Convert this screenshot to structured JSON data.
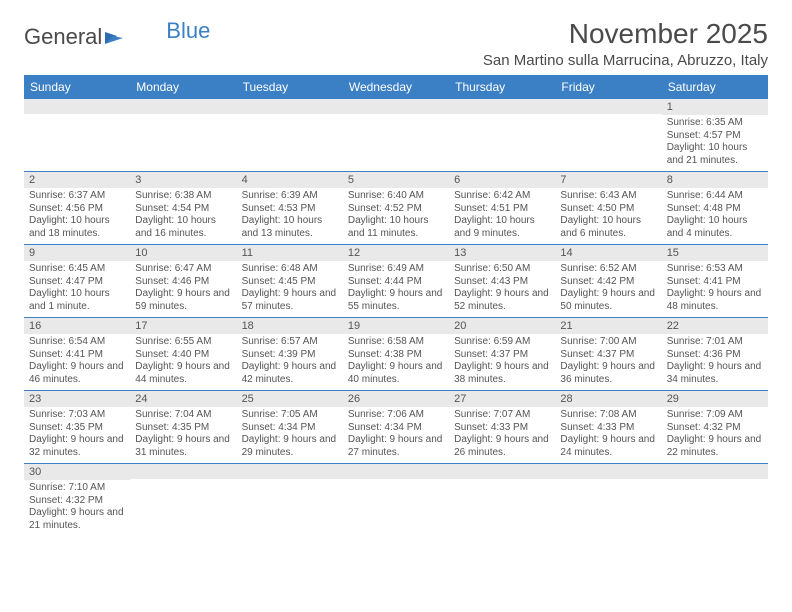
{
  "brand": {
    "part1": "General",
    "part2": "Blue"
  },
  "title": "November 2025",
  "location": "San Martino sulla Marrucina, Abruzzo, Italy",
  "colors": {
    "header_bg": "#3b7fc4",
    "header_text": "#ffffff",
    "row_border": "#3b7fc4",
    "daynum_bg": "#e9e9e9",
    "text": "#555555",
    "title_text": "#4a4a4a",
    "logo_gray": "#4a4a4a",
    "logo_blue": "#3b7fc4",
    "page_bg": "#ffffff"
  },
  "weekdays": [
    "Sunday",
    "Monday",
    "Tuesday",
    "Wednesday",
    "Thursday",
    "Friday",
    "Saturday"
  ],
  "weeks": [
    [
      {
        "blank": true
      },
      {
        "blank": true
      },
      {
        "blank": true
      },
      {
        "blank": true
      },
      {
        "blank": true
      },
      {
        "blank": true
      },
      {
        "day": "1",
        "sunrise": "Sunrise: 6:35 AM",
        "sunset": "Sunset: 4:57 PM",
        "daylight": "Daylight: 10 hours and 21 minutes."
      }
    ],
    [
      {
        "day": "2",
        "sunrise": "Sunrise: 6:37 AM",
        "sunset": "Sunset: 4:56 PM",
        "daylight": "Daylight: 10 hours and 18 minutes."
      },
      {
        "day": "3",
        "sunrise": "Sunrise: 6:38 AM",
        "sunset": "Sunset: 4:54 PM",
        "daylight": "Daylight: 10 hours and 16 minutes."
      },
      {
        "day": "4",
        "sunrise": "Sunrise: 6:39 AM",
        "sunset": "Sunset: 4:53 PM",
        "daylight": "Daylight: 10 hours and 13 minutes."
      },
      {
        "day": "5",
        "sunrise": "Sunrise: 6:40 AM",
        "sunset": "Sunset: 4:52 PM",
        "daylight": "Daylight: 10 hours and 11 minutes."
      },
      {
        "day": "6",
        "sunrise": "Sunrise: 6:42 AM",
        "sunset": "Sunset: 4:51 PM",
        "daylight": "Daylight: 10 hours and 9 minutes."
      },
      {
        "day": "7",
        "sunrise": "Sunrise: 6:43 AM",
        "sunset": "Sunset: 4:50 PM",
        "daylight": "Daylight: 10 hours and 6 minutes."
      },
      {
        "day": "8",
        "sunrise": "Sunrise: 6:44 AM",
        "sunset": "Sunset: 4:48 PM",
        "daylight": "Daylight: 10 hours and 4 minutes."
      }
    ],
    [
      {
        "day": "9",
        "sunrise": "Sunrise: 6:45 AM",
        "sunset": "Sunset: 4:47 PM",
        "daylight": "Daylight: 10 hours and 1 minute."
      },
      {
        "day": "10",
        "sunrise": "Sunrise: 6:47 AM",
        "sunset": "Sunset: 4:46 PM",
        "daylight": "Daylight: 9 hours and 59 minutes."
      },
      {
        "day": "11",
        "sunrise": "Sunrise: 6:48 AM",
        "sunset": "Sunset: 4:45 PM",
        "daylight": "Daylight: 9 hours and 57 minutes."
      },
      {
        "day": "12",
        "sunrise": "Sunrise: 6:49 AM",
        "sunset": "Sunset: 4:44 PM",
        "daylight": "Daylight: 9 hours and 55 minutes."
      },
      {
        "day": "13",
        "sunrise": "Sunrise: 6:50 AM",
        "sunset": "Sunset: 4:43 PM",
        "daylight": "Daylight: 9 hours and 52 minutes."
      },
      {
        "day": "14",
        "sunrise": "Sunrise: 6:52 AM",
        "sunset": "Sunset: 4:42 PM",
        "daylight": "Daylight: 9 hours and 50 minutes."
      },
      {
        "day": "15",
        "sunrise": "Sunrise: 6:53 AM",
        "sunset": "Sunset: 4:41 PM",
        "daylight": "Daylight: 9 hours and 48 minutes."
      }
    ],
    [
      {
        "day": "16",
        "sunrise": "Sunrise: 6:54 AM",
        "sunset": "Sunset: 4:41 PM",
        "daylight": "Daylight: 9 hours and 46 minutes."
      },
      {
        "day": "17",
        "sunrise": "Sunrise: 6:55 AM",
        "sunset": "Sunset: 4:40 PM",
        "daylight": "Daylight: 9 hours and 44 minutes."
      },
      {
        "day": "18",
        "sunrise": "Sunrise: 6:57 AM",
        "sunset": "Sunset: 4:39 PM",
        "daylight": "Daylight: 9 hours and 42 minutes."
      },
      {
        "day": "19",
        "sunrise": "Sunrise: 6:58 AM",
        "sunset": "Sunset: 4:38 PM",
        "daylight": "Daylight: 9 hours and 40 minutes."
      },
      {
        "day": "20",
        "sunrise": "Sunrise: 6:59 AM",
        "sunset": "Sunset: 4:37 PM",
        "daylight": "Daylight: 9 hours and 38 minutes."
      },
      {
        "day": "21",
        "sunrise": "Sunrise: 7:00 AM",
        "sunset": "Sunset: 4:37 PM",
        "daylight": "Daylight: 9 hours and 36 minutes."
      },
      {
        "day": "22",
        "sunrise": "Sunrise: 7:01 AM",
        "sunset": "Sunset: 4:36 PM",
        "daylight": "Daylight: 9 hours and 34 minutes."
      }
    ],
    [
      {
        "day": "23",
        "sunrise": "Sunrise: 7:03 AM",
        "sunset": "Sunset: 4:35 PM",
        "daylight": "Daylight: 9 hours and 32 minutes."
      },
      {
        "day": "24",
        "sunrise": "Sunrise: 7:04 AM",
        "sunset": "Sunset: 4:35 PM",
        "daylight": "Daylight: 9 hours and 31 minutes."
      },
      {
        "day": "25",
        "sunrise": "Sunrise: 7:05 AM",
        "sunset": "Sunset: 4:34 PM",
        "daylight": "Daylight: 9 hours and 29 minutes."
      },
      {
        "day": "26",
        "sunrise": "Sunrise: 7:06 AM",
        "sunset": "Sunset: 4:34 PM",
        "daylight": "Daylight: 9 hours and 27 minutes."
      },
      {
        "day": "27",
        "sunrise": "Sunrise: 7:07 AM",
        "sunset": "Sunset: 4:33 PM",
        "daylight": "Daylight: 9 hours and 26 minutes."
      },
      {
        "day": "28",
        "sunrise": "Sunrise: 7:08 AM",
        "sunset": "Sunset: 4:33 PM",
        "daylight": "Daylight: 9 hours and 24 minutes."
      },
      {
        "day": "29",
        "sunrise": "Sunrise: 7:09 AM",
        "sunset": "Sunset: 4:32 PM",
        "daylight": "Daylight: 9 hours and 22 minutes."
      }
    ],
    [
      {
        "day": "30",
        "sunrise": "Sunrise: 7:10 AM",
        "sunset": "Sunset: 4:32 PM",
        "daylight": "Daylight: 9 hours and 21 minutes."
      },
      {
        "blank": true
      },
      {
        "blank": true
      },
      {
        "blank": true
      },
      {
        "blank": true
      },
      {
        "blank": true
      },
      {
        "blank": true
      }
    ]
  ]
}
